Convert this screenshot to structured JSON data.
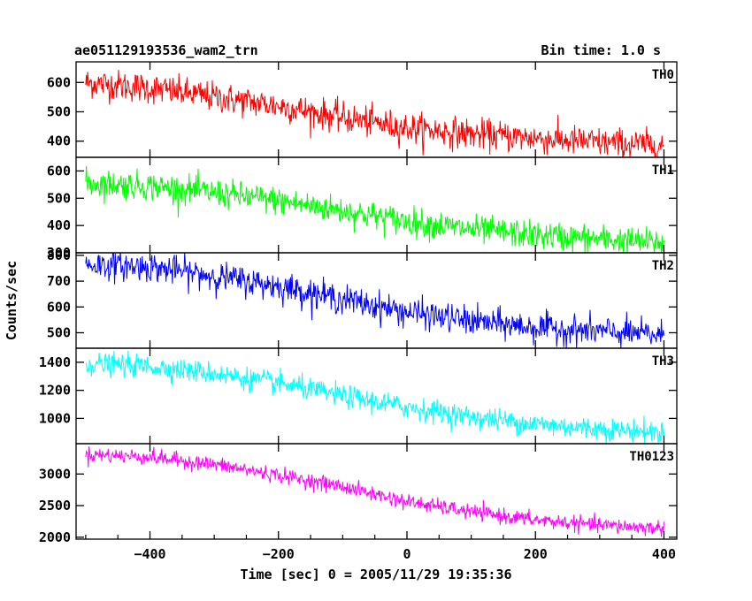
{
  "header": {
    "title": "ae051129193536_wam2_trn",
    "bin_time": "Bin time: 1.0 s"
  },
  "chart_data": {
    "type": "line",
    "xlabel": "Time [sec] 0 = 2005/11/29 19:35:36",
    "ylabel": "Counts/sec",
    "xlim": [
      -515,
      420
    ],
    "x_ticks": [
      -400,
      -200,
      0,
      200,
      400
    ],
    "x_tick_labels": [
      "−400",
      "−200",
      "0",
      "200",
      "400"
    ],
    "x_start": -500,
    "x_end": 400,
    "bin_time": 1.0,
    "grid": false,
    "legend": "none",
    "panels": [
      {
        "label": "TH0",
        "color": "#ff0000",
        "ylim": [
          345,
          670
        ],
        "y_ticks": [
          400,
          500,
          600
        ],
        "trend": [
          [
            -500,
            600
          ],
          [
            -400,
            580
          ],
          [
            -300,
            550
          ],
          [
            -200,
            520
          ],
          [
            -100,
            480
          ],
          [
            0,
            445
          ],
          [
            100,
            425
          ],
          [
            200,
            410
          ],
          [
            300,
            395
          ],
          [
            400,
            385
          ]
        ],
        "noise": 26
      },
      {
        "label": "TH1",
        "color": "#00ff00",
        "ylim": [
          300,
          650
        ],
        "y_ticks": [
          300,
          400,
          500,
          600
        ],
        "trend": [
          [
            -500,
            555
          ],
          [
            -400,
            545
          ],
          [
            -300,
            520
          ],
          [
            -200,
            490
          ],
          [
            -100,
            455
          ],
          [
            0,
            415
          ],
          [
            100,
            385
          ],
          [
            200,
            365
          ],
          [
            300,
            350
          ],
          [
            400,
            335
          ]
        ],
        "noise": 26
      },
      {
        "label": "TH2",
        "color": "#0000ff",
        "ylim": [
          440,
          810
        ],
        "y_ticks": [
          500,
          600,
          700,
          800
        ],
        "trend": [
          [
            -500,
            765
          ],
          [
            -400,
            755
          ],
          [
            -300,
            720
          ],
          [
            -200,
            680
          ],
          [
            -100,
            630
          ],
          [
            0,
            580
          ],
          [
            100,
            545
          ],
          [
            200,
            520
          ],
          [
            300,
            505
          ],
          [
            400,
            490
          ]
        ],
        "noise": 28
      },
      {
        "label": "TH3",
        "color": "#00ffff",
        "ylim": [
          820,
          1500
        ],
        "y_ticks": [
          1000,
          1200,
          1400
        ],
        "trend": [
          [
            -500,
            1390
          ],
          [
            -400,
            1370
          ],
          [
            -300,
            1320
          ],
          [
            -200,
            1250
          ],
          [
            -100,
            1160
          ],
          [
            0,
            1080
          ],
          [
            100,
            1010
          ],
          [
            200,
            960
          ],
          [
            300,
            925
          ],
          [
            400,
            900
          ]
        ],
        "noise": 40
      },
      {
        "label": "TH0123",
        "color": "#ff00ff",
        "ylim": [
          1970,
          3480
        ],
        "y_ticks": [
          2000,
          2500,
          3000
        ],
        "trend": [
          [
            -500,
            3310
          ],
          [
            -400,
            3270
          ],
          [
            -300,
            3150
          ],
          [
            -200,
            2980
          ],
          [
            -100,
            2800
          ],
          [
            0,
            2560
          ],
          [
            100,
            2400
          ],
          [
            200,
            2270
          ],
          [
            300,
            2190
          ],
          [
            400,
            2140
          ]
        ],
        "noise": 60
      }
    ]
  }
}
